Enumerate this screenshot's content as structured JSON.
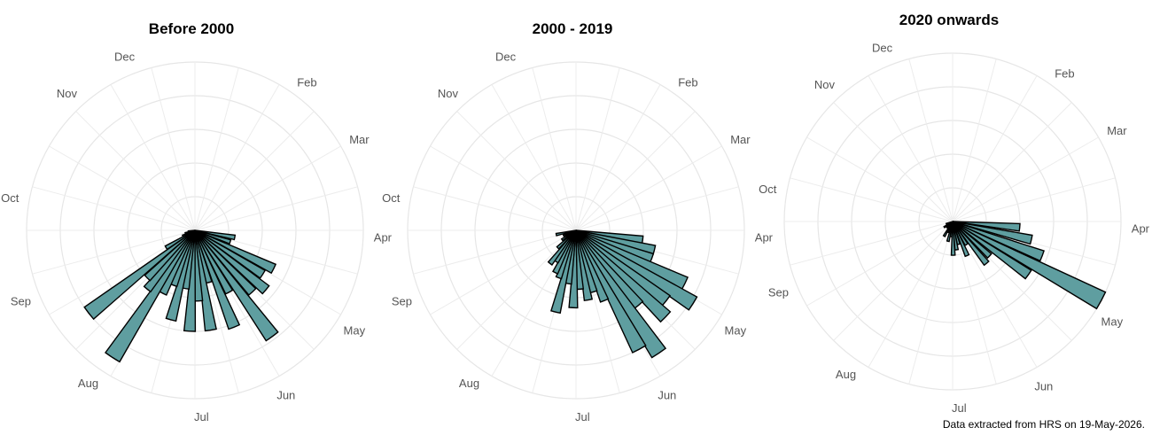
{
  "caption": "Data extracted from HRS on 19-May-2026.",
  "chart_data": [
    {
      "type": "polar-bar",
      "title": "Before 2000",
      "theta_labels": [
        "Dec",
        "Feb",
        "Mar",
        "Apr",
        "May",
        "Jun",
        "Jul",
        "Aug",
        "Sep",
        "Oct",
        "Nov"
      ],
      "bar_color": "#5f9ea0",
      "bars": [
        {
          "angle": 100,
          "value": 0.24
        },
        {
          "angle": 108,
          "value": 0.22
        },
        {
          "angle": 116,
          "value": 0.52
        },
        {
          "angle": 123,
          "value": 0.48
        },
        {
          "angle": 130,
          "value": 0.55
        },
        {
          "angle": 137,
          "value": 0.5
        },
        {
          "angle": 144,
          "value": 0.78
        },
        {
          "angle": 151,
          "value": 0.42
        },
        {
          "angle": 158,
          "value": 0.62
        },
        {
          "angle": 165,
          "value": 0.32
        },
        {
          "angle": 171,
          "value": 0.6
        },
        {
          "angle": 177,
          "value": 0.42
        },
        {
          "angle": 183,
          "value": 0.6
        },
        {
          "angle": 189,
          "value": 0.35
        },
        {
          "angle": 195,
          "value": 0.55
        },
        {
          "angle": 201,
          "value": 0.35
        },
        {
          "angle": 207,
          "value": 0.42
        },
        {
          "angle": 213,
          "value": 0.9
        },
        {
          "angle": 219,
          "value": 0.45
        },
        {
          "angle": 225,
          "value": 0.4
        },
        {
          "angle": 232,
          "value": 0.8
        },
        {
          "angle": 239,
          "value": 0.2
        },
        {
          "angle": 246,
          "value": 0.08
        },
        {
          "angle": 254,
          "value": 0.06
        },
        {
          "angle": 262,
          "value": 0.04
        }
      ]
    },
    {
      "type": "polar-bar",
      "title": "2000 - 2019",
      "theta_labels": [
        "Dec",
        "Feb",
        "Mar",
        "Apr",
        "May",
        "Jun",
        "Jul",
        "Aug",
        "Sep",
        "Oct",
        "Nov"
      ],
      "bar_color": "#5f9ea0",
      "bars": [
        {
          "angle": 98,
          "value": 0.4
        },
        {
          "angle": 104,
          "value": 0.48
        },
        {
          "angle": 110,
          "value": 0.48
        },
        {
          "angle": 116,
          "value": 0.72
        },
        {
          "angle": 122,
          "value": 0.82
        },
        {
          "angle": 128,
          "value": 0.68
        },
        {
          "angle": 134,
          "value": 0.74
        },
        {
          "angle": 140,
          "value": 0.58
        },
        {
          "angle": 146,
          "value": 0.88
        },
        {
          "angle": 152,
          "value": 0.8
        },
        {
          "angle": 158,
          "value": 0.45
        },
        {
          "angle": 164,
          "value": 0.38
        },
        {
          "angle": 170,
          "value": 0.42
        },
        {
          "angle": 176,
          "value": 0.35
        },
        {
          "angle": 182,
          "value": 0.46
        },
        {
          "angle": 188,
          "value": 0.32
        },
        {
          "angle": 194,
          "value": 0.5
        },
        {
          "angle": 200,
          "value": 0.3
        },
        {
          "angle": 206,
          "value": 0.28
        },
        {
          "angle": 212,
          "value": 0.22
        },
        {
          "angle": 218,
          "value": 0.25
        },
        {
          "angle": 226,
          "value": 0.15
        },
        {
          "angle": 236,
          "value": 0.1
        },
        {
          "angle": 248,
          "value": 0.08
        },
        {
          "angle": 258,
          "value": 0.12
        }
      ]
    },
    {
      "type": "polar-bar",
      "title": "2020 onwards",
      "theta_labels": [
        "Dec",
        "Feb",
        "Mar",
        "Apr",
        "May",
        "Jun",
        "Jul",
        "Aug",
        "Sep",
        "Oct",
        "Nov"
      ],
      "bar_color": "#5f9ea0",
      "bars": [
        {
          "angle": 95,
          "value": 0.4
        },
        {
          "angle": 103,
          "value": 0.48
        },
        {
          "angle": 111,
          "value": 0.57
        },
        {
          "angle": 118,
          "value": 1.0
        },
        {
          "angle": 125,
          "value": 0.55
        },
        {
          "angle": 133,
          "value": 0.3
        },
        {
          "angle": 141,
          "value": 0.32
        },
        {
          "angle": 149,
          "value": 0.16
        },
        {
          "angle": 157,
          "value": 0.22
        },
        {
          "angle": 165,
          "value": 0.14
        },
        {
          "angle": 172,
          "value": 0.17
        },
        {
          "angle": 179,
          "value": 0.2
        },
        {
          "angle": 186,
          "value": 0.09
        },
        {
          "angle": 193,
          "value": 0.12
        },
        {
          "angle": 200,
          "value": 0.07
        },
        {
          "angle": 210,
          "value": 0.1
        },
        {
          "angle": 222,
          "value": 0.05
        },
        {
          "angle": 236,
          "value": 0.06
        },
        {
          "angle": 250,
          "value": 0.04
        }
      ]
    }
  ]
}
